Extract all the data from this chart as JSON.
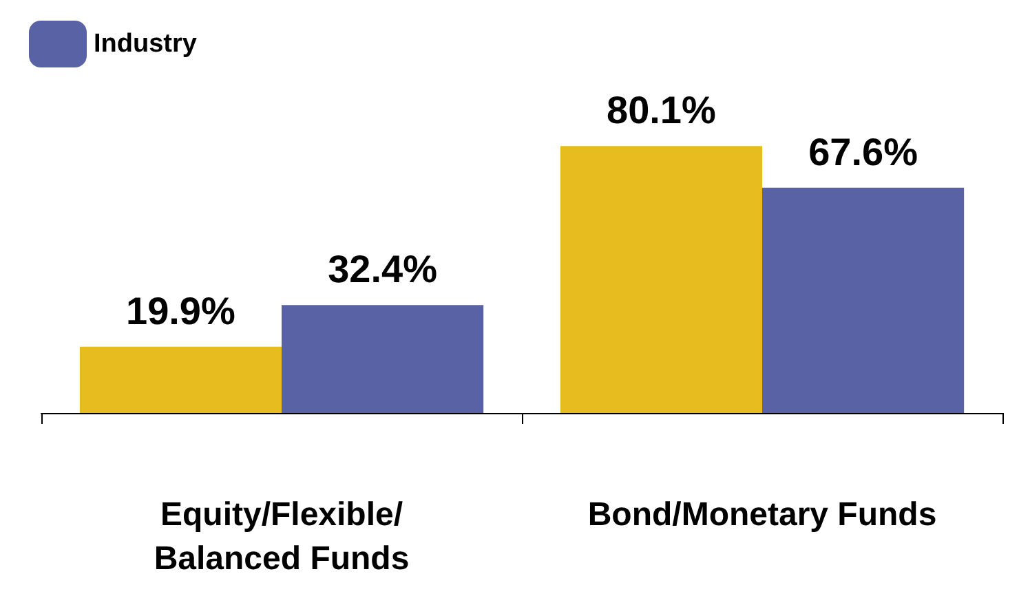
{
  "chart_data": {
    "type": "bar",
    "categories": [
      "Equity/Flexible/\nBalanced Funds",
      "Bond/Monetary Funds"
    ],
    "series": [
      {
        "color": "#e6bc1e",
        "values": [
          19.9,
          80.1
        ],
        "value_labels": [
          "19.9%",
          "80.1%"
        ]
      },
      {
        "name": "Industry",
        "color": "#5a62a6",
        "values": [
          32.4,
          67.6
        ],
        "value_labels": [
          "32.4%",
          "67.6%"
        ]
      }
    ],
    "legend": "top left",
    "tick_labels": "x"
  }
}
